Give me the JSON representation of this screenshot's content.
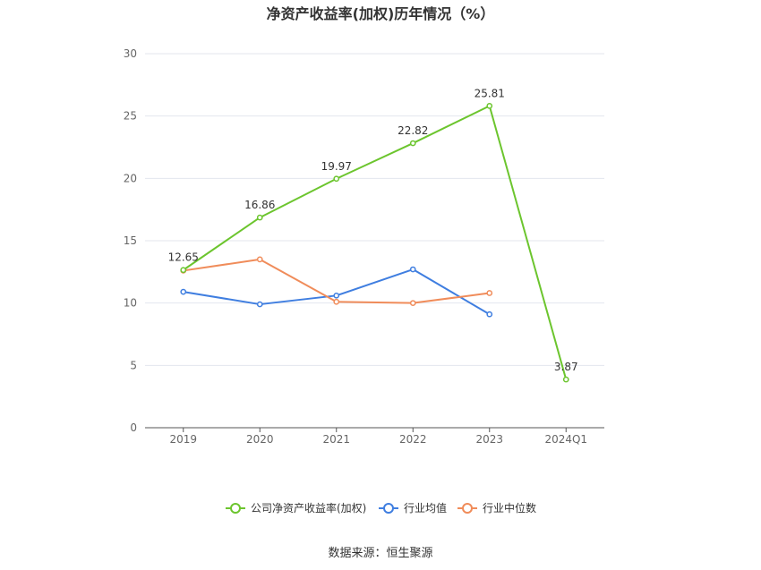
{
  "title": "净资产收益率(加权)历年情况（%）",
  "source": "数据来源：恒生聚源",
  "chart_data": {
    "type": "line",
    "title": "净资产收益率(加权)历年情况（%）",
    "categories": [
      "2019",
      "2020",
      "2021",
      "2022",
      "2023",
      "2024Q1"
    ],
    "ylim": [
      0,
      30
    ],
    "yticks": [
      0,
      5,
      10,
      15,
      20,
      25,
      30
    ],
    "grid": true,
    "legend_position": "bottom",
    "series": [
      {
        "name": "公司净资产收益率(加权)",
        "color": "#6cc52e",
        "values": [
          12.65,
          16.86,
          19.97,
          22.82,
          25.81,
          3.87
        ],
        "labels": [
          "12.65",
          "16.86",
          "19.97",
          "22.82",
          "25.81",
          "3.87"
        ]
      },
      {
        "name": "行业均值",
        "color": "#3f7ee0",
        "values": [
          10.9,
          9.9,
          10.6,
          12.7,
          9.1,
          null
        ]
      },
      {
        "name": "行业中位数",
        "color": "#f08c5a",
        "values": [
          12.6,
          13.5,
          10.1,
          10.0,
          10.8,
          null
        ]
      }
    ]
  }
}
